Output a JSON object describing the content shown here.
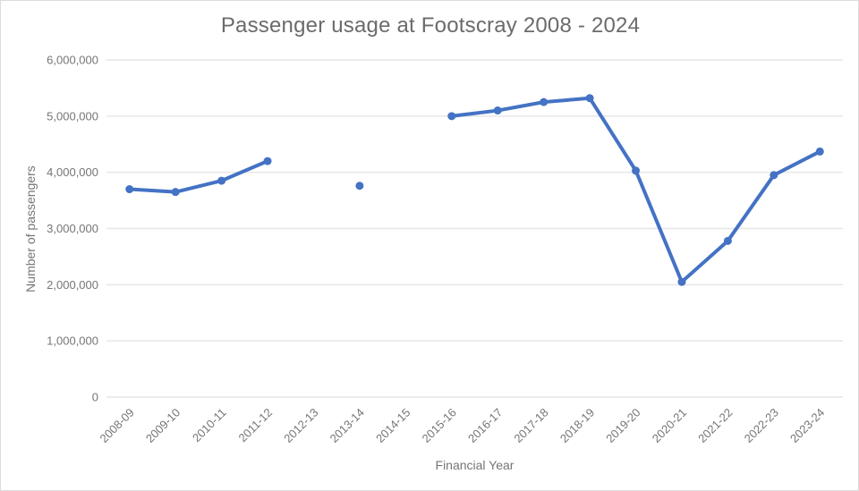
{
  "chart_data": {
    "type": "line",
    "title": "Passenger usage at Footscray 2008 - 2024",
    "xlabel": "Financial Year",
    "ylabel": "Number of passengers",
    "categories": [
      "2008-09",
      "2009-10",
      "2010-11",
      "2011-12",
      "2012-13",
      "2013-14",
      "2014-15",
      "2015-16",
      "2016-17",
      "2017-18",
      "2018-19",
      "2019-20",
      "2020-21",
      "2021-22",
      "2022-23",
      "2023-24"
    ],
    "values": [
      3700000,
      3650000,
      3850000,
      4200000,
      null,
      3760000,
      null,
      5000000,
      5100000,
      5250000,
      5320000,
      4030000,
      2050000,
      2780000,
      3950000,
      4370000
    ],
    "ylim": [
      0,
      6000000
    ],
    "ytick_step": 1000000,
    "ytick_labels": [
      "0",
      "1,000,000",
      "2,000,000",
      "3,000,000",
      "4,000,000",
      "5,000,000",
      "6,000,000"
    ],
    "grid": "horizontal",
    "legend": "none",
    "series_name": "Passengers",
    "colors": {
      "series": "#4472C4",
      "grid": "#e6e6e6",
      "tick_text": "#757575",
      "title_text": "#6b6b6b"
    }
  }
}
